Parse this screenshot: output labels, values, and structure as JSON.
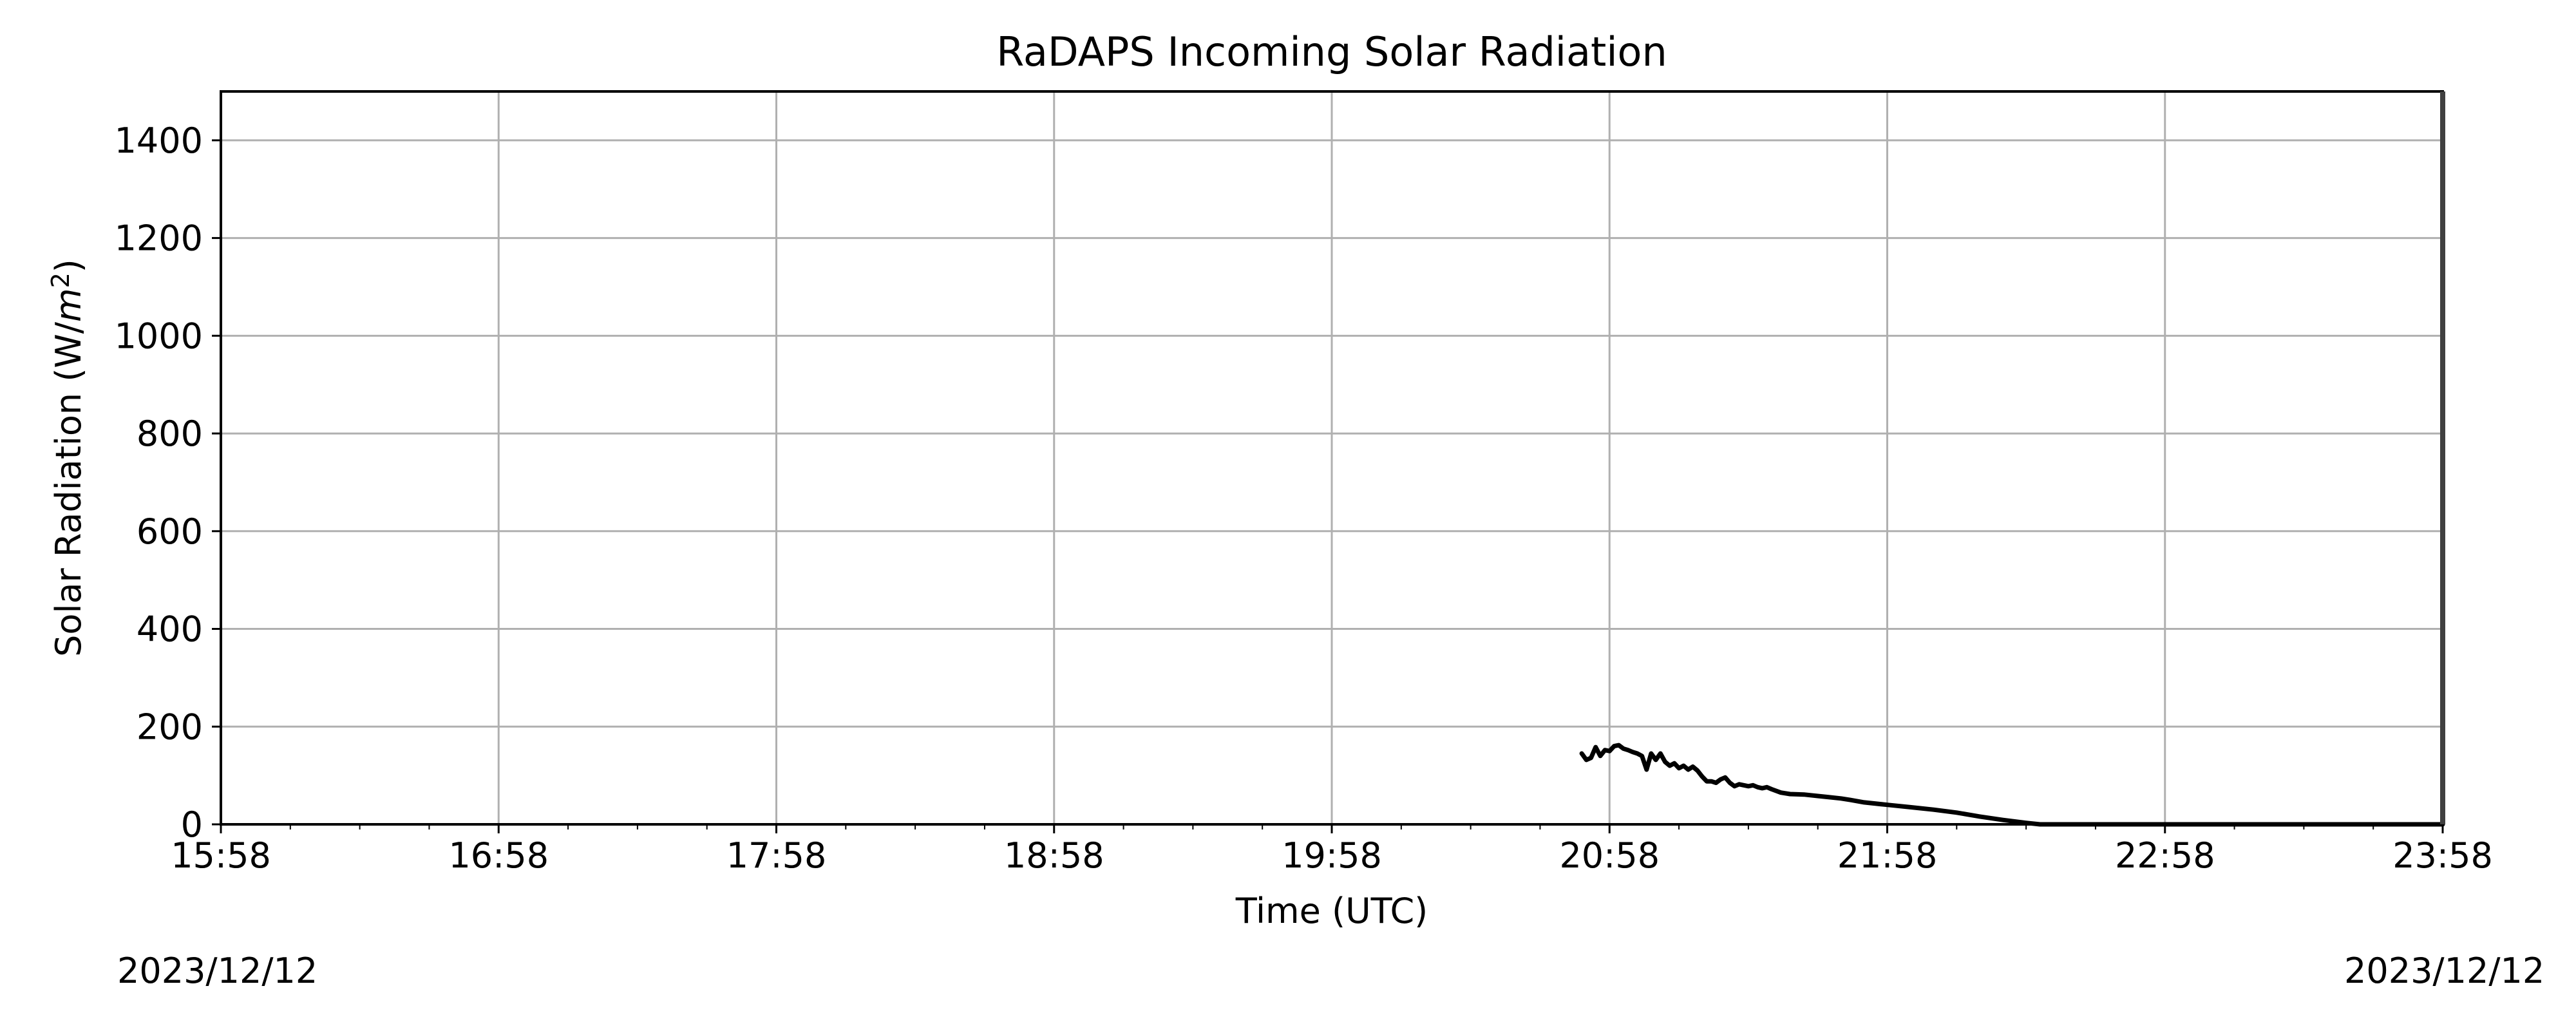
{
  "chart_data": {
    "type": "line",
    "title": "RaDAPS Incoming Solar Radiation",
    "xlabel": "Time (UTC)",
    "ylabel": "Solar Radiation (W/m²)",
    "ylabel_main": "Solar Radiation (W/",
    "ylabel_unit_base": "m",
    "ylabel_unit_exp": "2",
    "ylabel_close": ")",
    "xlim": [
      "15:58",
      "23:58"
    ],
    "ylim": [
      0,
      1500
    ],
    "x_ticks": [
      "15:58",
      "16:58",
      "17:58",
      "18:58",
      "19:58",
      "20:58",
      "21:58",
      "22:58",
      "23:58"
    ],
    "y_ticks": [
      0,
      200,
      400,
      600,
      800,
      1000,
      1200,
      1400
    ],
    "grid": true,
    "start_date": "2023/12/12",
    "end_date": "2023/12/12",
    "series": [
      {
        "color": "#000000",
        "points": [
          [
            "20:52",
            145
          ],
          [
            "20:53",
            132
          ],
          [
            "20:54",
            136
          ],
          [
            "20:55",
            158
          ],
          [
            "20:56",
            140
          ],
          [
            "20:57",
            152
          ],
          [
            "20:58",
            150
          ],
          [
            "20:59",
            160
          ],
          [
            "21:00",
            162
          ],
          [
            "21:01",
            155
          ],
          [
            "21:02",
            152
          ],
          [
            "21:03",
            148
          ],
          [
            "21:04",
            145
          ],
          [
            "21:05",
            140
          ],
          [
            "21:06",
            112
          ],
          [
            "21:07",
            145
          ],
          [
            "21:08",
            132
          ],
          [
            "21:09",
            145
          ],
          [
            "21:10",
            128
          ],
          [
            "21:11",
            120
          ],
          [
            "21:12",
            125
          ],
          [
            "21:13",
            115
          ],
          [
            "21:14",
            120
          ],
          [
            "21:15",
            112
          ],
          [
            "21:16",
            118
          ],
          [
            "21:17",
            110
          ],
          [
            "21:18",
            98
          ],
          [
            "21:19",
            88
          ],
          [
            "21:20",
            88
          ],
          [
            "21:21",
            85
          ],
          [
            "21:22",
            92
          ],
          [
            "21:23",
            96
          ],
          [
            "21:24",
            85
          ],
          [
            "21:25",
            78
          ],
          [
            "21:26",
            82
          ],
          [
            "21:27",
            80
          ],
          [
            "21:28",
            78
          ],
          [
            "21:29",
            80
          ],
          [
            "21:30",
            76
          ],
          [
            "21:31",
            74
          ],
          [
            "21:32",
            76
          ],
          [
            "21:33",
            72
          ],
          [
            "21:35",
            65
          ],
          [
            "21:37",
            62
          ],
          [
            "21:40",
            61
          ],
          [
            "21:43",
            58
          ],
          [
            "21:45",
            56
          ],
          [
            "21:48",
            53
          ],
          [
            "21:50",
            50
          ],
          [
            "21:53",
            45
          ],
          [
            "21:58",
            40
          ],
          [
            "22:03",
            35
          ],
          [
            "22:08",
            30
          ],
          [
            "22:13",
            24
          ],
          [
            "22:18",
            16
          ],
          [
            "22:23",
            9
          ],
          [
            "22:28",
            3
          ],
          [
            "22:31",
            0
          ],
          [
            "22:40",
            0
          ],
          [
            "23:00",
            0
          ],
          [
            "23:20",
            0
          ],
          [
            "23:40",
            0
          ],
          [
            "23:58",
            0
          ]
        ]
      }
    ]
  }
}
